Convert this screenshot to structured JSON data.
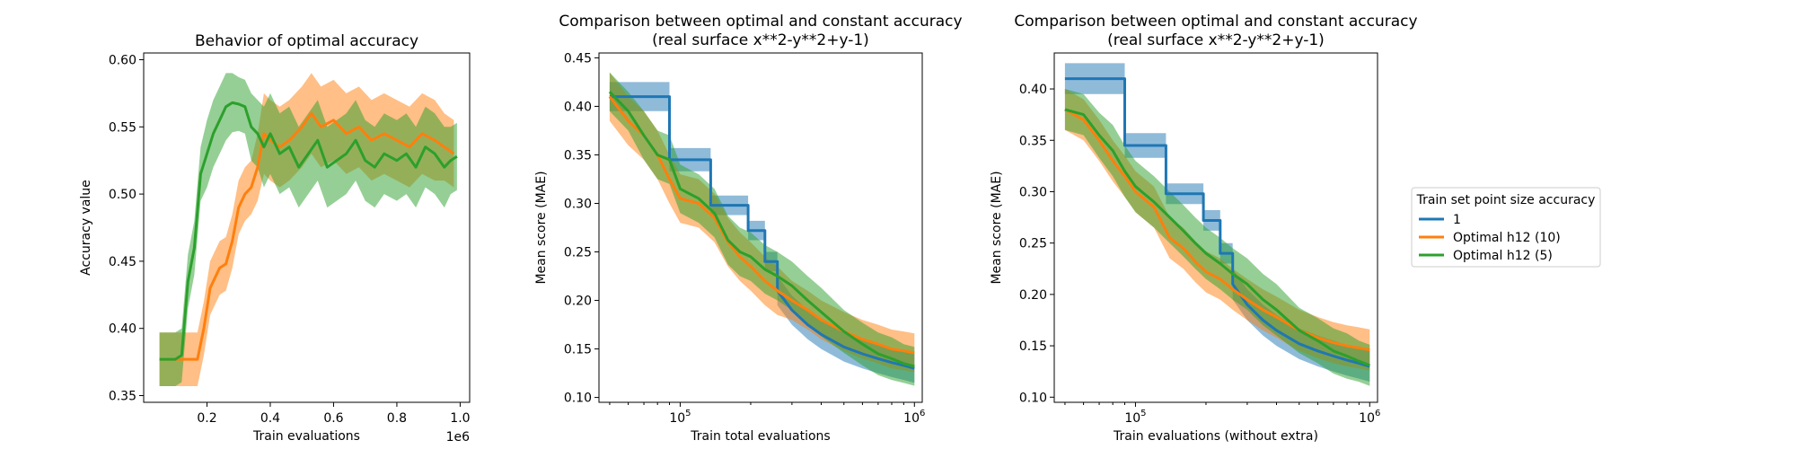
{
  "colors": {
    "blue": "#1f77b4",
    "orange": "#ff7f0e",
    "green": "#2ca02c"
  },
  "legend": {
    "title": "Train set point size accuracy",
    "placement": "center-right",
    "entries": [
      {
        "label": "1",
        "color": "#1f77b4"
      },
      {
        "label": "Optimal h12 (10)",
        "color": "#ff7f0e"
      },
      {
        "label": "Optimal h12 (5)",
        "color": "#2ca02c"
      }
    ]
  },
  "chart_data": [
    {
      "type": "line",
      "title": "Behavior of optimal accuracy",
      "xlabel": "Train evaluations",
      "ylabel": "Accuracy value",
      "x_offset_label": "1e6",
      "xlim": [
        0.0,
        1.03
      ],
      "ylim": [
        0.345,
        0.605
      ],
      "xticks": [
        0.2,
        0.4,
        0.6,
        0.8,
        1.0
      ],
      "xticklabels": [
        "0.2",
        "0.4",
        "0.6",
        "0.8",
        "1.0"
      ],
      "yticks": [
        0.35,
        0.4,
        0.45,
        0.5,
        0.55,
        0.6
      ],
      "yticklabels": [
        "0.35",
        "0.40",
        "0.45",
        "0.50",
        "0.55",
        "0.60"
      ],
      "shaded_band": true,
      "series": [
        {
          "name": "Optimal h12 (10)",
          "color": "#ff7f0e",
          "x": [
            0.05,
            0.1,
            0.14,
            0.17,
            0.19,
            0.21,
            0.24,
            0.26,
            0.28,
            0.3,
            0.32,
            0.34,
            0.36,
            0.38,
            0.4,
            0.43,
            0.46,
            0.5,
            0.53,
            0.56,
            0.6,
            0.64,
            0.68,
            0.72,
            0.76,
            0.8,
            0.84,
            0.88,
            0.92,
            0.95,
            0.98
          ],
          "y": [
            0.377,
            0.377,
            0.377,
            0.377,
            0.4,
            0.43,
            0.445,
            0.448,
            0.465,
            0.49,
            0.5,
            0.505,
            0.52,
            0.545,
            0.54,
            0.535,
            0.54,
            0.55,
            0.56,
            0.55,
            0.555,
            0.545,
            0.55,
            0.54,
            0.545,
            0.54,
            0.535,
            0.545,
            0.54,
            0.535,
            0.53
          ],
          "spread": [
            0.02,
            0.02,
            0.02,
            0.02,
            0.02,
            0.02,
            0.02,
            0.02,
            0.02,
            0.02,
            0.02,
            0.02,
            0.025,
            0.03,
            0.03,
            0.03,
            0.03,
            0.03,
            0.03,
            0.03,
            0.03,
            0.03,
            0.03,
            0.03,
            0.03,
            0.03,
            0.03,
            0.03,
            0.03,
            0.025,
            0.025
          ]
        },
        {
          "name": "Optimal h12 (5)",
          "color": "#2ca02c",
          "x": [
            0.05,
            0.1,
            0.12,
            0.14,
            0.16,
            0.18,
            0.2,
            0.22,
            0.24,
            0.26,
            0.28,
            0.3,
            0.32,
            0.34,
            0.36,
            0.38,
            0.4,
            0.43,
            0.46,
            0.49,
            0.52,
            0.55,
            0.58,
            0.61,
            0.64,
            0.67,
            0.7,
            0.73,
            0.76,
            0.8,
            0.83,
            0.86,
            0.89,
            0.92,
            0.95,
            0.97,
            0.99
          ],
          "y": [
            0.377,
            0.377,
            0.38,
            0.435,
            0.46,
            0.515,
            0.53,
            0.545,
            0.555,
            0.565,
            0.568,
            0.567,
            0.565,
            0.55,
            0.545,
            0.535,
            0.545,
            0.53,
            0.535,
            0.52,
            0.53,
            0.54,
            0.52,
            0.525,
            0.53,
            0.54,
            0.525,
            0.52,
            0.53,
            0.525,
            0.53,
            0.52,
            0.535,
            0.53,
            0.52,
            0.525,
            0.528
          ],
          "spread": [
            0.02,
            0.02,
            0.02,
            0.02,
            0.02,
            0.02,
            0.025,
            0.025,
            0.025,
            0.025,
            0.022,
            0.02,
            0.02,
            0.025,
            0.025,
            0.03,
            0.03,
            0.03,
            0.03,
            0.03,
            0.03,
            0.03,
            0.03,
            0.03,
            0.03,
            0.03,
            0.03,
            0.03,
            0.03,
            0.03,
            0.03,
            0.03,
            0.03,
            0.03,
            0.03,
            0.025,
            0.025
          ]
        }
      ]
    },
    {
      "type": "line",
      "title": "Comparison between optimal and constant accuracy",
      "subtitle": "(real surface x**2-y**2+y-1)",
      "xlabel": "Train total evaluations",
      "ylabel": "Mean score (MAE)",
      "xscale": "log",
      "xlim": [
        45000,
        1080000
      ],
      "ylim": [
        0.095,
        0.455
      ],
      "xticks": [
        100000,
        1000000
      ],
      "xticklabels": [
        "10^5",
        "10^6"
      ],
      "yticks": [
        0.1,
        0.15,
        0.2,
        0.25,
        0.3,
        0.35,
        0.4,
        0.45
      ],
      "yticklabels": [
        "0.10",
        "0.15",
        "0.20",
        "0.25",
        "0.30",
        "0.35",
        "0.40",
        "0.45"
      ],
      "shaded_band": true,
      "series": [
        {
          "name": "1",
          "color": "#1f77b4",
          "x": [
            50000,
            60000,
            75000,
            90000,
            90000,
            100000,
            135000,
            135000,
            155000,
            195000,
            195000,
            230000,
            230000,
            260000,
            260000,
            300000,
            350000,
            400000,
            500000,
            600000,
            700000,
            800000,
            900000,
            1000000
          ],
          "y": [
            0.41,
            0.41,
            0.41,
            0.41,
            0.345,
            0.345,
            0.345,
            0.298,
            0.298,
            0.298,
            0.272,
            0.272,
            0.24,
            0.24,
            0.21,
            0.19,
            0.175,
            0.165,
            0.152,
            0.145,
            0.14,
            0.136,
            0.133,
            0.13
          ],
          "spread": [
            0.015,
            0.015,
            0.015,
            0.015,
            0.012,
            0.012,
            0.012,
            0.01,
            0.01,
            0.01,
            0.01,
            0.01,
            0.01,
            0.01,
            0.015,
            0.015,
            0.015,
            0.015,
            0.015,
            0.015,
            0.015,
            0.015,
            0.015,
            0.015
          ]
        },
        {
          "name": "Optimal h12 (10)",
          "color": "#ff7f0e",
          "x": [
            50000,
            60000,
            70000,
            80000,
            90000,
            100000,
            120000,
            140000,
            160000,
            180000,
            200000,
            230000,
            260000,
            300000,
            350000,
            400000,
            500000,
            600000,
            700000,
            800000,
            900000,
            1000000
          ],
          "y": [
            0.41,
            0.385,
            0.37,
            0.35,
            0.325,
            0.305,
            0.3,
            0.285,
            0.26,
            0.245,
            0.235,
            0.22,
            0.21,
            0.2,
            0.19,
            0.18,
            0.168,
            0.16,
            0.155,
            0.15,
            0.148,
            0.146
          ],
          "spread": [
            0.025,
            0.025,
            0.025,
            0.025,
            0.025,
            0.025,
            0.025,
            0.025,
            0.025,
            0.025,
            0.025,
            0.025,
            0.025,
            0.02,
            0.02,
            0.02,
            0.02,
            0.02,
            0.02,
            0.02,
            0.02,
            0.02
          ]
        },
        {
          "name": "Optimal h12 (5)",
          "color": "#2ca02c",
          "x": [
            50000,
            60000,
            70000,
            80000,
            90000,
            100000,
            120000,
            140000,
            160000,
            180000,
            200000,
            230000,
            260000,
            300000,
            350000,
            400000,
            500000,
            600000,
            700000,
            800000,
            900000,
            1000000
          ],
          "y": [
            0.415,
            0.395,
            0.37,
            0.35,
            0.345,
            0.315,
            0.305,
            0.29,
            0.262,
            0.25,
            0.245,
            0.232,
            0.225,
            0.215,
            0.2,
            0.188,
            0.168,
            0.155,
            0.145,
            0.14,
            0.135,
            0.132
          ],
          "spread": [
            0.02,
            0.02,
            0.025,
            0.025,
            0.025,
            0.025,
            0.025,
            0.025,
            0.025,
            0.025,
            0.025,
            0.025,
            0.025,
            0.025,
            0.025,
            0.025,
            0.022,
            0.022,
            0.022,
            0.022,
            0.02,
            0.02
          ]
        }
      ]
    },
    {
      "type": "line",
      "title": "Comparison between optimal and constant accuracy",
      "subtitle": "(real surface x**2-y**2+y-1)",
      "xlabel": "Train evaluations (without extra)",
      "ylabel": "Mean score (MAE)",
      "xscale": "log",
      "xlim": [
        45000,
        1080000
      ],
      "ylim": [
        0.095,
        0.435
      ],
      "xticks": [
        100000,
        1000000
      ],
      "xticklabels": [
        "10^5",
        "10^6"
      ],
      "yticks": [
        0.1,
        0.15,
        0.2,
        0.25,
        0.3,
        0.35,
        0.4
      ],
      "yticklabels": [
        "0.10",
        "0.15",
        "0.20",
        "0.25",
        "0.30",
        "0.35",
        "0.40"
      ],
      "shaded_band": true,
      "series": [
        {
          "name": "1",
          "color": "#1f77b4",
          "x": [
            50000,
            60000,
            75000,
            90000,
            90000,
            100000,
            135000,
            135000,
            155000,
            195000,
            195000,
            230000,
            230000,
            260000,
            260000,
            300000,
            350000,
            400000,
            500000,
            600000,
            700000,
            800000,
            900000,
            1000000
          ],
          "y": [
            0.41,
            0.41,
            0.41,
            0.41,
            0.345,
            0.345,
            0.345,
            0.298,
            0.298,
            0.298,
            0.272,
            0.272,
            0.24,
            0.24,
            0.21,
            0.19,
            0.175,
            0.165,
            0.152,
            0.145,
            0.14,
            0.136,
            0.133,
            0.13
          ],
          "spread": [
            0.015,
            0.015,
            0.015,
            0.015,
            0.012,
            0.012,
            0.012,
            0.01,
            0.01,
            0.01,
            0.01,
            0.01,
            0.01,
            0.01,
            0.015,
            0.015,
            0.015,
            0.015,
            0.015,
            0.015,
            0.015,
            0.015,
            0.015,
            0.015
          ]
        },
        {
          "name": "Optimal h12 (10)",
          "color": "#ff7f0e",
          "x": [
            50000,
            60000,
            70000,
            80000,
            90000,
            100000,
            120000,
            140000,
            160000,
            180000,
            200000,
            230000,
            260000,
            300000,
            350000,
            400000,
            500000,
            600000,
            700000,
            800000,
            900000,
            1000000
          ],
          "y": [
            0.38,
            0.37,
            0.35,
            0.33,
            0.315,
            0.3,
            0.285,
            0.255,
            0.245,
            0.232,
            0.222,
            0.215,
            0.205,
            0.195,
            0.185,
            0.178,
            0.165,
            0.158,
            0.153,
            0.15,
            0.148,
            0.146
          ],
          "spread": [
            0.02,
            0.02,
            0.02,
            0.02,
            0.02,
            0.02,
            0.02,
            0.02,
            0.02,
            0.02,
            0.02,
            0.02,
            0.02,
            0.02,
            0.02,
            0.02,
            0.02,
            0.02,
            0.02,
            0.02,
            0.02,
            0.02
          ]
        },
        {
          "name": "Optimal h12 (5)",
          "color": "#2ca02c",
          "x": [
            50000,
            60000,
            70000,
            80000,
            90000,
            100000,
            120000,
            140000,
            160000,
            180000,
            200000,
            230000,
            260000,
            300000,
            350000,
            400000,
            500000,
            600000,
            700000,
            800000,
            900000,
            1000000
          ],
          "y": [
            0.38,
            0.375,
            0.355,
            0.34,
            0.32,
            0.305,
            0.29,
            0.275,
            0.262,
            0.25,
            0.24,
            0.23,
            0.22,
            0.21,
            0.195,
            0.185,
            0.165,
            0.155,
            0.145,
            0.14,
            0.135,
            0.131
          ],
          "spread": [
            0.02,
            0.02,
            0.022,
            0.025,
            0.025,
            0.025,
            0.025,
            0.025,
            0.025,
            0.025,
            0.025,
            0.025,
            0.025,
            0.025,
            0.025,
            0.025,
            0.022,
            0.022,
            0.022,
            0.022,
            0.02,
            0.02
          ]
        }
      ]
    }
  ]
}
